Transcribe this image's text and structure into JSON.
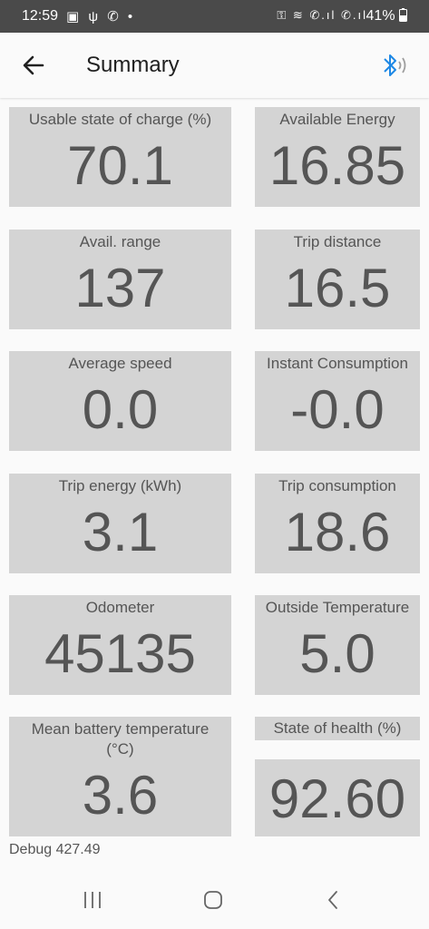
{
  "status_bar": {
    "time": "12:59",
    "left_icons": "▣ ψ ✆ •",
    "right_icons": "⚿ ≋ ✆.ıl ✆.ıl",
    "battery": "41%"
  },
  "app_bar": {
    "title": "Summary"
  },
  "tiles": [
    {
      "label": "Usable state of charge (%)",
      "value": "70.1"
    },
    {
      "label": "Available Energy",
      "value": "16.85"
    },
    {
      "label": "Avail. range",
      "value": "137"
    },
    {
      "label": "Trip distance",
      "value": "16.5"
    },
    {
      "label": "Average speed",
      "value": "0.0"
    },
    {
      "label": "Instant Consumption",
      "value": "-0.0"
    },
    {
      "label": "Trip energy (kWh)",
      "value": "3.1"
    },
    {
      "label": "Trip consumption",
      "value": "18.6"
    },
    {
      "label": "Odometer",
      "value": "45135"
    },
    {
      "label": "Outside Temperature",
      "value": "5.0"
    },
    {
      "label": "Mean battery temperature (°C)",
      "value": "3.6"
    },
    {
      "label": "State of health (%)",
      "value": "92.60"
    }
  ],
  "debug_text": "Debug 427.49",
  "colors": {
    "tile_bg": "#d4d4d4",
    "text": "#555555",
    "status_bar": "#4a4a4a",
    "bluetooth": "#1e88e5"
  }
}
